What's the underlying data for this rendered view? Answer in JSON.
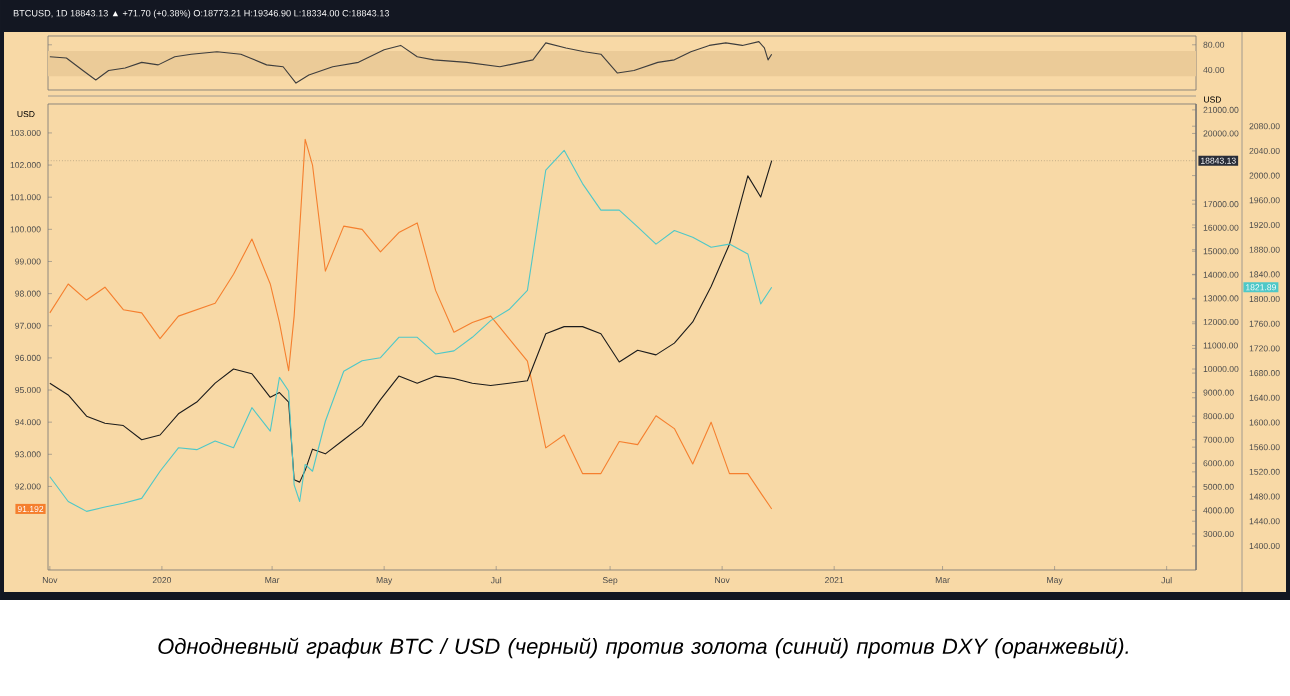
{
  "chart_data": [
    {
      "type": "line",
      "subtitle": "BTCUSD, 1D 18843.13 ▲ +71.70 (+0.38%) O:18773.21 H:19346.90 L:18334.00 C:18843.13",
      "x": [
        "2019-11-01",
        "2019-11-10",
        "2019-11-19",
        "2019-11-26",
        "2019-12-03",
        "2019-12-12",
        "2019-12-21",
        "2019-12-30",
        "2020-01-08",
        "2020-01-17",
        "2020-01-31",
        "2020-02-13",
        "2020-02-18",
        "2020-02-27",
        "2020-03-07",
        "2020-03-14",
        "2020-03-21",
        "2020-04-03",
        "2020-04-17",
        "2020-05-01",
        "2020-05-10",
        "2020-05-19",
        "2020-05-28",
        "2020-06-15",
        "2020-07-03",
        "2020-07-21",
        "2020-07-28",
        "2020-08-08",
        "2020-08-18",
        "2020-08-27",
        "2020-09-05",
        "2020-09-14",
        "2020-09-27",
        "2020-10-06",
        "2020-10-15",
        "2020-10-25",
        "2020-11-03",
        "2020-11-12",
        "2020-11-21",
        "2020-11-24",
        "2020-11-26",
        "2020-11-28"
      ],
      "series": [
        {
          "color": "#3d3d3d",
          "values": [
            61,
            59,
            39,
            24,
            39,
            43,
            52,
            48,
            61,
            65,
            69,
            65,
            59,
            48,
            45,
            19,
            32,
            45,
            52,
            72,
            79,
            61,
            56,
            52,
            45,
            56,
            83,
            75,
            69,
            65,
            35,
            39,
            52,
            56,
            69,
            79,
            83,
            79,
            85,
            75,
            56,
            65
          ]
        }
      ],
      "xlim": [
        "2019-10-31",
        "2021-07-17"
      ],
      "ylim": [
        8,
        94
      ],
      "yticks": [
        {
          "value": 40,
          "label": "40.00"
        },
        {
          "value": 80,
          "label": "80.00"
        }
      ],
      "bands": [
        {
          "axis": "y",
          "from": 30,
          "to": 70,
          "color": "#ebcb98"
        }
      ],
      "tick_labels": "y"
    },
    {
      "type": "line",
      "ylabel": "USD",
      "y2label": "USD",
      "annotations": [
        "Однодневный график BTC / USD (черный) против золота (синий) против DXY (оранжевый).",
        "1821.89",
        "91.192"
      ],
      "x": [
        "2019-11-01",
        "2019-11-11",
        "2019-11-21",
        "2019-12-01",
        "2019-12-11",
        "2019-12-21",
        "2019-12-31",
        "2020-01-10",
        "2020-01-20",
        "2020-01-30",
        "2020-02-09",
        "2020-02-19",
        "2020-02-29",
        "2020-03-05",
        "2020-03-10",
        "2020-03-13",
        "2020-03-16",
        "2020-03-19",
        "2020-03-23",
        "2020-03-30",
        "2020-04-09",
        "2020-04-19",
        "2020-04-29",
        "2020-05-09",
        "2020-05-19",
        "2020-05-29",
        "2020-06-08",
        "2020-06-18",
        "2020-06-28",
        "2020-07-08",
        "2020-07-18",
        "2020-07-28",
        "2020-08-07",
        "2020-08-17",
        "2020-08-27",
        "2020-09-06",
        "2020-09-16",
        "2020-09-26",
        "2020-10-06",
        "2020-10-16",
        "2020-10-26",
        "2020-11-05",
        "2020-11-15",
        "2020-11-22",
        "2020-11-28"
      ],
      "series": [
        {
          "type": "line",
          "axis": "y",
          "color": "#f57f2e",
          "values": [
            97.4,
            98.3,
            97.8,
            98.2,
            97.5,
            97.4,
            96.6,
            97.3,
            97.5,
            97.7,
            98.6,
            99.7,
            98.3,
            97.1,
            95.6,
            97.3,
            100.0,
            102.8,
            102.0,
            98.7,
            100.1,
            100.0,
            99.3,
            99.9,
            100.2,
            98.1,
            96.8,
            97.1,
            97.3,
            96.6,
            95.9,
            93.2,
            93.6,
            92.4,
            92.4,
            93.4,
            93.3,
            94.2,
            93.8,
            92.7,
            94.0,
            92.4,
            92.4,
            91.8,
            91.3
          ]
        },
        {
          "type": "line",
          "axis": "y3",
          "color": "#4ec8c8",
          "values": [
            1512,
            1472,
            1456,
            1463,
            1469,
            1477,
            1521,
            1559,
            1556,
            1570,
            1559,
            1624,
            1586,
            1673,
            1651,
            1499,
            1472,
            1532,
            1521,
            1602,
            1683,
            1700,
            1705,
            1738,
            1738,
            1711,
            1716,
            1738,
            1765,
            1783,
            1814,
            2009,
            2041,
            1987,
            1944,
            1944,
            1917,
            1889,
            1911,
            1900,
            1884,
            1889,
            1873,
            1792,
            1819
          ]
        },
        {
          "type": "line",
          "axis": "y2",
          "color": "#1b1b1b",
          "values": [
            9400,
            8900,
            8000,
            7700,
            7600,
            7000,
            7200,
            8100,
            8600,
            9400,
            10000,
            9800,
            8800,
            9000,
            8600,
            5300,
            5200,
            5700,
            6600,
            6400,
            7000,
            7600,
            8700,
            9700,
            9400,
            9700,
            9600,
            9400,
            9300,
            9400,
            9500,
            11500,
            11800,
            11800,
            11500,
            10300,
            10800,
            10600,
            11100,
            12000,
            13500,
            15300,
            18200,
            17300,
            18843
          ]
        }
      ],
      "xlim": [
        "2019-10-31",
        "2021-07-17"
      ],
      "xticks": [
        {
          "value": "2019-11-01",
          "label": "Nov"
        },
        {
          "value": "2020-01-01",
          "label": "2020"
        },
        {
          "value": "2020-03-01",
          "label": "Mar"
        },
        {
          "value": "2020-05-01",
          "label": "May"
        },
        {
          "value": "2020-07-01",
          "label": "Jul"
        },
        {
          "value": "2020-09-01",
          "label": "Sep"
        },
        {
          "value": "2020-11-01",
          "label": "Nov"
        },
        {
          "value": "2021-01-01",
          "label": "2021"
        },
        {
          "value": "2021-03-01",
          "label": "Mar"
        },
        {
          "value": "2021-05-01",
          "label": "May"
        },
        {
          "value": "2021-07-01",
          "label": "Jul"
        }
      ],
      "ylim": [
        89.4,
        103.9
      ],
      "yticks": [
        {
          "value": 92,
          "label": "92.000"
        },
        {
          "value": 93,
          "label": "93.000"
        },
        {
          "value": 94,
          "label": "94.000"
        },
        {
          "value": 95,
          "label": "95.000"
        },
        {
          "value": 96,
          "label": "96.000"
        },
        {
          "value": 97,
          "label": "97.000"
        },
        {
          "value": 98,
          "label": "98.000"
        },
        {
          "value": 99,
          "label": "99.000"
        },
        {
          "value": 100,
          "label": "100.000"
        },
        {
          "value": 101,
          "label": "101.000"
        },
        {
          "value": 102,
          "label": "102.000"
        },
        {
          "value": 103,
          "label": "103.000"
        }
      ],
      "y2lim": [
        1470,
        21250
      ],
      "y2ticks": [
        {
          "value": 3000,
          "label": "3000.00"
        },
        {
          "value": 4000,
          "label": "4000.00"
        },
        {
          "value": 5000,
          "label": "5000.00"
        },
        {
          "value": 6000,
          "label": "6000.00"
        },
        {
          "value": 7000,
          "label": "7000.00"
        },
        {
          "value": 8000,
          "label": "8000.00"
        },
        {
          "value": 9000,
          "label": "9000.00"
        },
        {
          "value": 10000,
          "label": "10000.00"
        },
        {
          "value": 11000,
          "label": "11000.00"
        },
        {
          "value": 12000,
          "label": "12000.00"
        },
        {
          "value": 13000,
          "label": "13000.00"
        },
        {
          "value": 14000,
          "label": "14000.00"
        },
        {
          "value": 15000,
          "label": "15000.00"
        },
        {
          "value": 16000,
          "label": "16000.00"
        },
        {
          "value": 17000,
          "label": "17000.00"
        },
        {
          "value": 20000,
          "label": "20000.00"
        },
        {
          "value": 21000,
          "label": "21000.00"
        }
      ],
      "y3lim": [
        1361,
        2116
      ],
      "y3ticks": [
        {
          "value": 1400,
          "label": "1400.00"
        },
        {
          "value": 1440,
          "label": "1440.00"
        },
        {
          "value": 1480,
          "label": "1480.00"
        },
        {
          "value": 1520,
          "label": "1520.00"
        },
        {
          "value": 1560,
          "label": "1560.00"
        },
        {
          "value": 1600,
          "label": "1600.00"
        },
        {
          "value": 1640,
          "label": "1640.00"
        },
        {
          "value": 1680,
          "label": "1680.00"
        },
        {
          "value": 1720,
          "label": "1720.00"
        },
        {
          "value": 1760,
          "label": "1760.00"
        },
        {
          "value": 1800,
          "label": "1800.00"
        },
        {
          "value": 1840,
          "label": "1840.00"
        },
        {
          "value": 1880,
          "label": "1880.00"
        },
        {
          "value": 1920,
          "label": "1920.00"
        },
        {
          "value": 1960,
          "label": "1960.00"
        },
        {
          "value": 2000,
          "label": "2000.00"
        },
        {
          "value": 2040,
          "label": "2040.00"
        },
        {
          "value": 2080,
          "label": "2080.00"
        }
      ],
      "ref_lines": [
        {
          "axis": "y2",
          "value": 18843.13,
          "label": "18843.13",
          "color": "#a89878",
          "line_style": "dotted"
        }
      ]
    }
  ]
}
